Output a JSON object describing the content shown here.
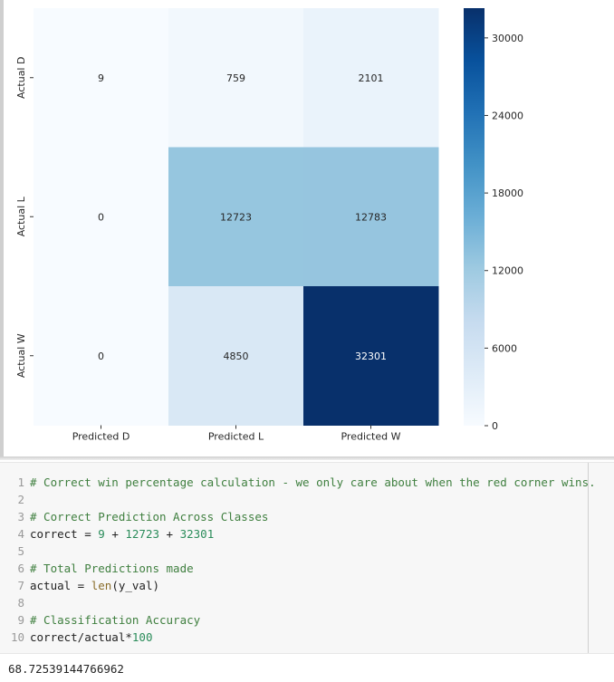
{
  "chart_data": {
    "type": "heatmap",
    "rows": [
      "Actual D",
      "Actual L",
      "Actual W"
    ],
    "columns": [
      "Predicted D",
      "Predicted L",
      "Predicted W"
    ],
    "values": [
      [
        9,
        759,
        2101
      ],
      [
        0,
        12723,
        12783
      ],
      [
        0,
        4850,
        32301
      ]
    ],
    "colorbar": {
      "min": 0,
      "max": 32301,
      "ticks": [
        0,
        6000,
        12000,
        18000,
        24000,
        30000
      ]
    },
    "colormap": [
      "#f7fbff",
      "#deebf7",
      "#c6dbef",
      "#9ecae1",
      "#6baed6",
      "#4292c6",
      "#2171b5",
      "#08519c",
      "#08306b"
    ]
  },
  "code": {
    "lines": [
      {
        "num": "1",
        "tokens": [
          {
            "t": "comment",
            "v": "# Correct win percentage calculation - we only care about when the red corner wins."
          }
        ]
      },
      {
        "num": "2",
        "tokens": []
      },
      {
        "num": "3",
        "tokens": [
          {
            "t": "comment",
            "v": "# Correct Prediction Across Classes"
          }
        ]
      },
      {
        "num": "4",
        "tokens": [
          {
            "t": "plain",
            "v": "correct = "
          },
          {
            "t": "num",
            "v": "9"
          },
          {
            "t": "plain",
            "v": " + "
          },
          {
            "t": "num",
            "v": "12723"
          },
          {
            "t": "plain",
            "v": " + "
          },
          {
            "t": "num",
            "v": "32301"
          }
        ]
      },
      {
        "num": "5",
        "tokens": []
      },
      {
        "num": "6",
        "tokens": [
          {
            "t": "comment",
            "v": "# Total Predictions made"
          }
        ]
      },
      {
        "num": "7",
        "tokens": [
          {
            "t": "plain",
            "v": "actual = "
          },
          {
            "t": "func",
            "v": "len"
          },
          {
            "t": "plain",
            "v": "(y_val)"
          }
        ]
      },
      {
        "num": "8",
        "tokens": []
      },
      {
        "num": "9",
        "tokens": [
          {
            "t": "comment",
            "v": "# Classification Accuracy"
          }
        ]
      },
      {
        "num": "10",
        "tokens": [
          {
            "t": "plain",
            "v": "correct/actual*"
          },
          {
            "t": "num",
            "v": "100"
          }
        ]
      }
    ]
  },
  "output": {
    "result": "68.72539144766962"
  }
}
